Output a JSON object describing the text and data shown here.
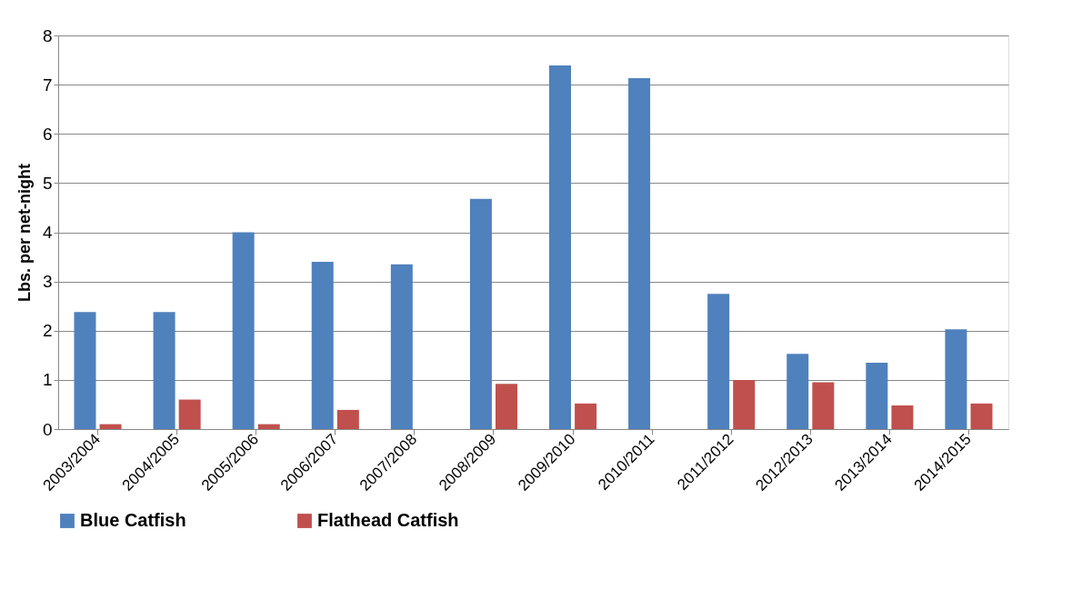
{
  "chart_data": {
    "type": "bar",
    "ylabel": "Lbs. per net-night",
    "categories": [
      "2003/2004",
      "2004/2005",
      "2005/2006",
      "2006/2007",
      "2007/2008",
      "2008/2009",
      "2009/2010",
      "2010/2011",
      "2011/2012",
      "2012/2013",
      "2013/2014",
      "2014/2015"
    ],
    "series": [
      {
        "name": "Blue Catfish",
        "color": "#4f81bd",
        "values": [
          2.38,
          2.38,
          4.0,
          3.4,
          3.35,
          4.68,
          7.39,
          7.13,
          2.75,
          1.53,
          1.35,
          2.03
        ]
      },
      {
        "name": "Flathead Catfish",
        "color": "#c0504d",
        "values": [
          0.1,
          0.6,
          0.1,
          0.39,
          0,
          0.92,
          0.52,
          0,
          1.0,
          0.95,
          0.48,
          0.52
        ]
      }
    ],
    "ylim": [
      0,
      8
    ],
    "yticks": [
      0,
      1,
      2,
      3,
      4,
      5,
      6,
      7,
      8
    ],
    "grid": "y",
    "legend": "bottom"
  }
}
